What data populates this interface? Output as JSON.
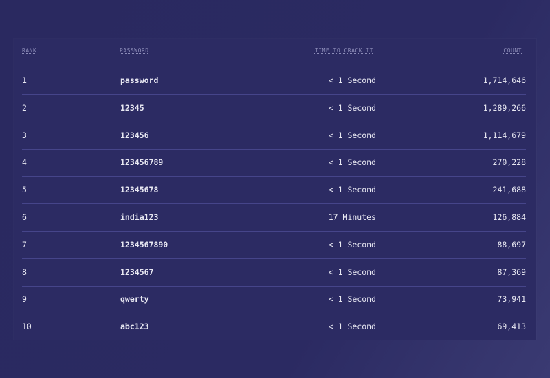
{
  "table": {
    "headers": {
      "rank": "RANK",
      "password": "PASSWORD",
      "time": "TIME TO CRACK IT",
      "count": "COUNT"
    },
    "rows": [
      {
        "rank": "1",
        "password": "password",
        "time": "< 1 Second",
        "count": "1,714,646"
      },
      {
        "rank": "2",
        "password": "12345",
        "time": "< 1 Second",
        "count": "1,289,266"
      },
      {
        "rank": "3",
        "password": "123456",
        "time": "< 1 Second",
        "count": "1,114,679"
      },
      {
        "rank": "4",
        "password": "123456789",
        "time": "< 1 Second",
        "count": "270,228"
      },
      {
        "rank": "5",
        "password": "12345678",
        "time": "< 1 Second",
        "count": "241,688"
      },
      {
        "rank": "6",
        "password": "india123",
        "time": "17 Minutes",
        "count": "126,884"
      },
      {
        "rank": "7",
        "password": "1234567890",
        "time": "< 1 Second",
        "count": "88,697"
      },
      {
        "rank": "8",
        "password": "1234567",
        "time": "< 1 Second",
        "count": "87,369"
      },
      {
        "rank": "9",
        "password": "qwerty",
        "time": "< 1 Second",
        "count": "73,941"
      },
      {
        "rank": "10",
        "password": "abc123",
        "time": "< 1 Second",
        "count": "69,413"
      }
    ]
  }
}
